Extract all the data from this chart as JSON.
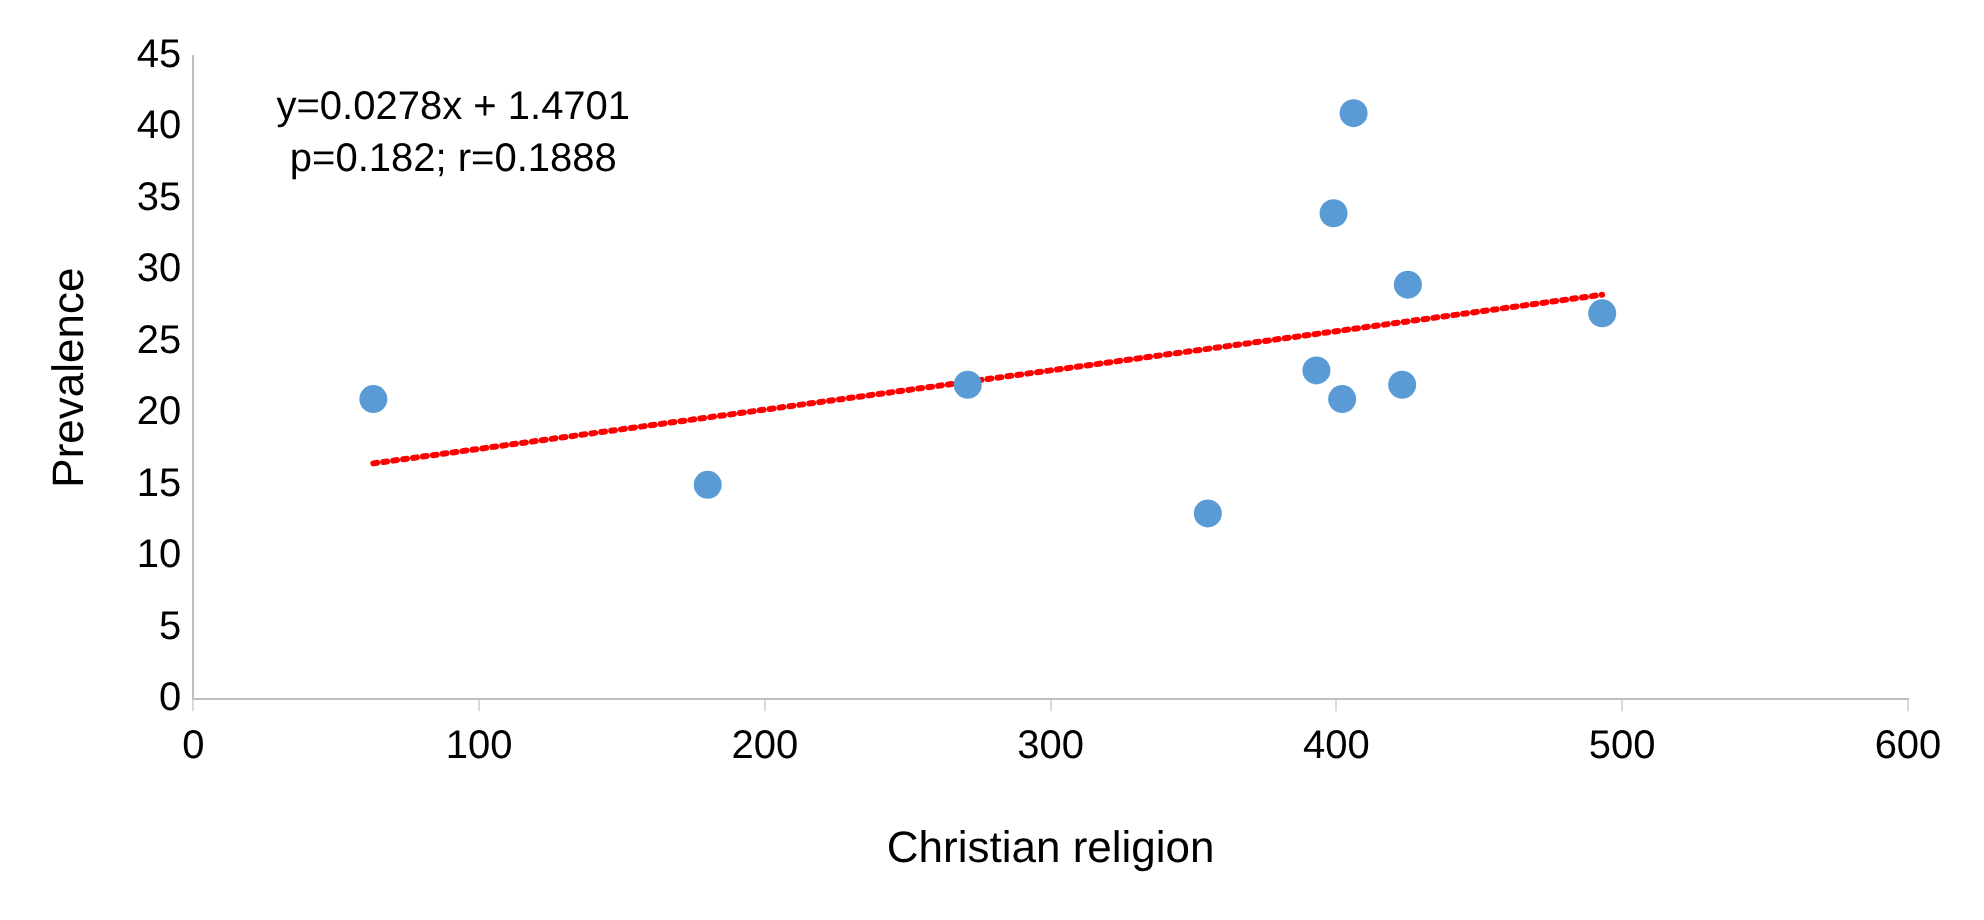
{
  "chart_data": {
    "type": "scatter",
    "xlabel": "Christian religion",
    "ylabel": "Prevalence",
    "xlim": [
      0,
      600
    ],
    "xticks": [
      0,
      100,
      200,
      300,
      400,
      500,
      600
    ],
    "ylim": [
      0,
      45
    ],
    "yticks": [
      0,
      5,
      10,
      15,
      20,
      25,
      30,
      35,
      40,
      45
    ],
    "grid": false,
    "legend": false,
    "marker": "circle",
    "annotations": [
      "y=0.0278x + 1.4701",
      "p=0.182; r=0.1888"
    ],
    "series": [
      {
        "type": "scatter",
        "color": "#5b9bd5",
        "x": [
          63,
          180,
          271,
          355,
          393,
          399,
          402,
          406,
          425,
          423,
          493
        ],
        "values": [
          21,
          15,
          22,
          13,
          23,
          34,
          21,
          41,
          29,
          22,
          27
        ]
      },
      {
        "type": "line",
        "color": "#ff0000",
        "line_style": "dotted",
        "marker": "none",
        "x": [
          63,
          493
        ],
        "values": [
          16.5,
          28.3
        ]
      }
    ]
  }
}
